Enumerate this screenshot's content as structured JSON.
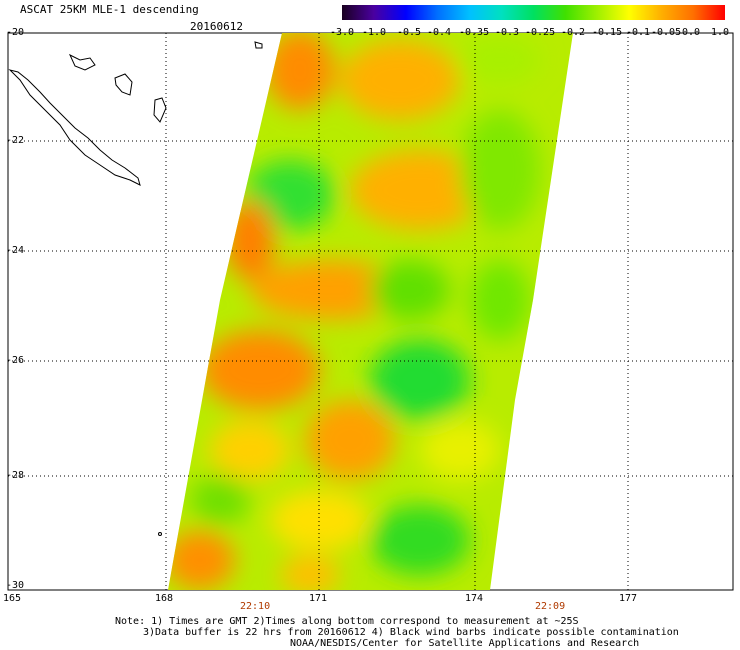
{
  "header": {
    "title": "ASCAT 25KM MLE-1 descending",
    "date": "20160612"
  },
  "colorbar": {
    "ticks": [
      "-3.0",
      "-1.0",
      "-0.5",
      "-0.4",
      "-0.35",
      "-0.3",
      "-0.25",
      "-0.2",
      "-0.15",
      "-0.1",
      "-0.05",
      "0.0",
      "1.0"
    ],
    "colors": [
      "#1a0020",
      "#4a00a0",
      "#0000ff",
      "#0070ff",
      "#00c0ff",
      "#00e0c0",
      "#00e060",
      "#40e000",
      "#a0f000",
      "#ffff00",
      "#ffb000",
      "#ff7000",
      "#ff0000"
    ]
  },
  "axes": {
    "lat_labels": [
      "-20",
      "-22",
      "-24",
      "-26",
      "-28",
      "-30"
    ],
    "lon_labels": [
      "165",
      "168",
      "171",
      "174",
      "177"
    ]
  },
  "times": [
    "22:10",
    "22:09"
  ],
  "notes": {
    "line1": "Note: 1) Times are GMT 2)Times along bottom correspond to measurement at ~25S",
    "line2": "3)Data buffer is 22 hrs from 20160612 4) Black wind barbs indicate possible contamination",
    "line3": "NOAA/NESDIS/Center for Satellite Applications and Research"
  }
}
